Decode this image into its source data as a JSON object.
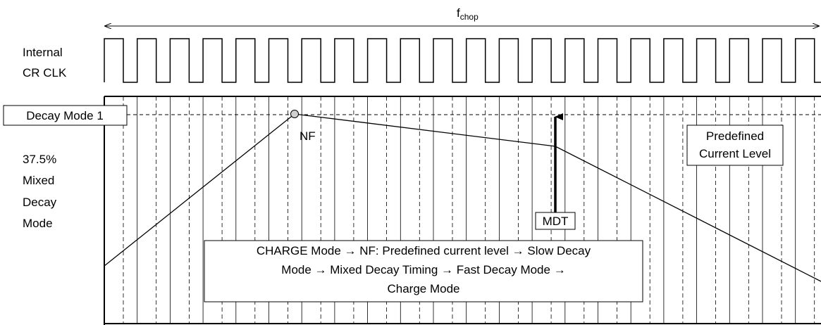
{
  "freq_label": {
    "main": "f",
    "sub": "chop"
  },
  "clock_label": [
    "Internal",
    "CR CLK"
  ],
  "decay_mode_label": "Decay Mode 1",
  "mode_description": [
    "37.5%",
    "Mixed",
    "Decay",
    "Mode"
  ],
  "nf_label": "NF",
  "mdt_label": "MDT",
  "predefined_label": [
    "Predefined",
    "Current Level"
  ],
  "sequence_text": [
    "CHARGE Mode → NF: Predefined current level → Slow Decay",
    "Mode → Mixed Decay Timing → Fast Decay Mode →",
    "Charge Mode"
  ]
}
